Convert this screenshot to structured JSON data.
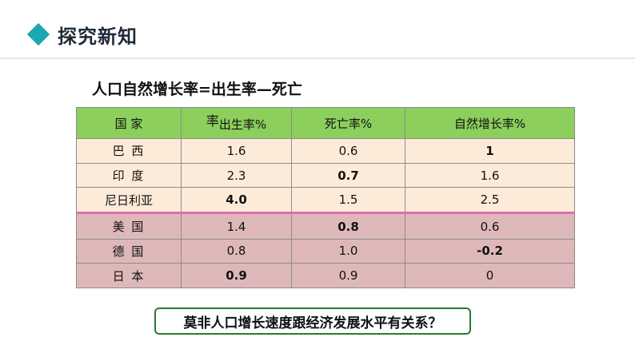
{
  "header": {
    "title": "探究新知",
    "icon": "diamond-icon",
    "accent_color": "#1aa8b5"
  },
  "formula": "人口自然增长率=出生率—死亡",
  "table": {
    "headers": {
      "country": "国  家",
      "birth_prefix": "率",
      "birth": "出生率%",
      "death": "死亡率%",
      "natural": "自然增长率%"
    },
    "rows": [
      {
        "country": "巴 西",
        "birth": "1.6",
        "death": "0.6",
        "natural": "1"
      },
      {
        "country": "印 度",
        "birth": "2.3",
        "death": "0.7",
        "natural": "1.6"
      },
      {
        "country": "尼日利亚",
        "birth": "4.0",
        "death": "1.5",
        "natural": "2.5"
      },
      {
        "country": "美 国",
        "birth": "1.4",
        "death": "0.8",
        "natural": "0.6"
      },
      {
        "country": "德 国",
        "birth": "0.8",
        "death": "1.0",
        "natural": "-0.2"
      },
      {
        "country": "日 本",
        "birth": "0.9",
        "death": "0.9",
        "natural": "0"
      }
    ],
    "colors": {
      "header": "#8ccf5c",
      "developing_rows": "#fcebd9",
      "developed_rows": "#deb8b8",
      "highlight_text": "#e02020",
      "divider": "#e46eaa"
    }
  },
  "question": "莫非人口增长速度跟经济发展水平有关系？"
}
